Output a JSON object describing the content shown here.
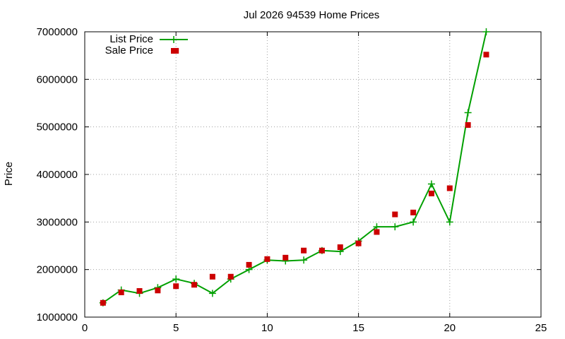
{
  "chart_data": {
    "type": "line",
    "title": "Jul 2026 94539 Home Prices",
    "xlabel": "",
    "ylabel": "Price",
    "xlim": [
      0,
      25
    ],
    "ylim": [
      1000000,
      7000000
    ],
    "x_ticks": [
      0,
      5,
      10,
      15,
      20,
      25
    ],
    "y_ticks": [
      1000000,
      2000000,
      3000000,
      4000000,
      5000000,
      6000000,
      7000000
    ],
    "grid": true,
    "legend_position": "top-left",
    "series": [
      {
        "name": "List Price",
        "style": "line-with-plus-markers",
        "color": "#00a000",
        "x": [
          1,
          2,
          3,
          4,
          5,
          6,
          7,
          8,
          9,
          10,
          11,
          12,
          13,
          14,
          15,
          16,
          17,
          18,
          19,
          20,
          21,
          22
        ],
        "values": [
          1300000,
          1570000,
          1500000,
          1620000,
          1800000,
          1710000,
          1500000,
          1800000,
          2000000,
          2200000,
          2180000,
          2200000,
          2400000,
          2380000,
          2600000,
          2900000,
          2900000,
          3000000,
          3800000,
          3000000,
          5300000,
          7000000
        ]
      },
      {
        "name": "Sale Price",
        "style": "square-markers",
        "color": "#cc0000",
        "x": [
          1,
          2,
          3,
          4,
          5,
          5,
          6,
          7,
          8,
          9,
          10,
          11,
          12,
          13,
          14,
          15,
          16,
          17,
          18,
          19,
          20,
          21,
          22
        ],
        "values": [
          1300000,
          1520000,
          1550000,
          1560000,
          1650000,
          6600000,
          1680000,
          1850000,
          1850000,
          2100000,
          2220000,
          2250000,
          2400000,
          2400000,
          2470000,
          2550000,
          2790000,
          3160000,
          3200000,
          3600000,
          3710000,
          5040000,
          6520000
        ]
      }
    ]
  }
}
